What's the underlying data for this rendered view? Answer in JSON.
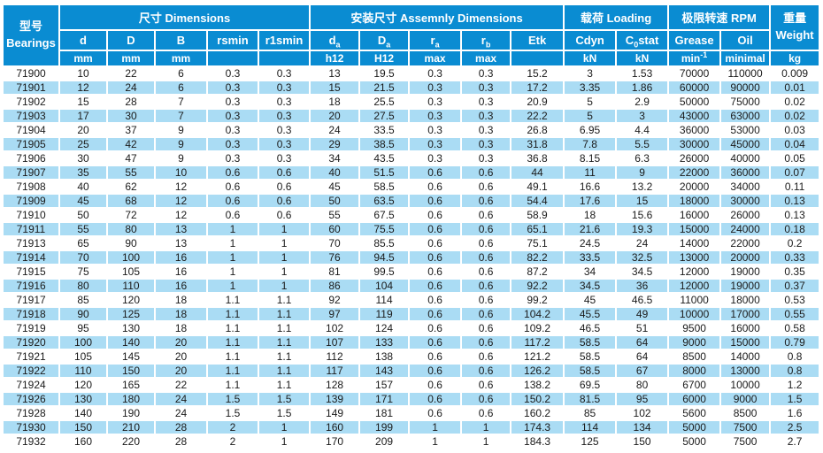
{
  "colors": {
    "header_blue": "#0a8cd2",
    "row_alt_blue": "#aadcf4",
    "row_white": "#ffffff",
    "header_text": "#ffffff",
    "data_text": "#1b1b1b"
  },
  "table": {
    "header": {
      "bearings": {
        "zh": "型号",
        "en": "Bearings"
      },
      "groups": {
        "dimensions": "尺寸 Dimensions",
        "assembly": "安装尺寸 Assemnly Dimensions",
        "loading": "载荷 Loading",
        "rpm": "极限转速 RPM"
      },
      "weight": {
        "zh": "重量",
        "en": "Weight",
        "unit": "kg"
      },
      "columns": [
        {
          "pre": "d",
          "sub": "",
          "post": "",
          "unit": "mm",
          "unit_sup": ""
        },
        {
          "pre": "D",
          "sub": "",
          "post": "",
          "unit": "mm",
          "unit_sup": ""
        },
        {
          "pre": "B",
          "sub": "",
          "post": "",
          "unit": "mm",
          "unit_sup": ""
        },
        {
          "pre": "rsmin",
          "sub": "",
          "post": "",
          "unit": "",
          "unit_sup": ""
        },
        {
          "pre": "r1smin",
          "sub": "",
          "post": "",
          "unit": "",
          "unit_sup": ""
        },
        {
          "pre": "d",
          "sub": "a",
          "post": "",
          "unit": "h12",
          "unit_sup": ""
        },
        {
          "pre": "D",
          "sub": "a",
          "post": "",
          "unit": "H12",
          "unit_sup": ""
        },
        {
          "pre": "r",
          "sub": "a",
          "post": "",
          "unit": "max",
          "unit_sup": ""
        },
        {
          "pre": "r",
          "sub": "b",
          "post": "",
          "unit": "max",
          "unit_sup": ""
        },
        {
          "pre": "Etk",
          "sub": "",
          "post": "",
          "unit": "",
          "unit_sup": ""
        },
        {
          "pre": "Cdyn",
          "sub": "",
          "post": "",
          "unit": "kN",
          "unit_sup": ""
        },
        {
          "pre": "C",
          "sub": "0",
          "post": "stat",
          "unit": "kN",
          "unit_sup": ""
        },
        {
          "pre": "Grease",
          "sub": "",
          "post": "",
          "unit": "min",
          "unit_sup": "-1"
        },
        {
          "pre": "Oil",
          "sub": "",
          "post": "",
          "unit": "minimal",
          "unit_sup": ""
        }
      ]
    },
    "rows": [
      [
        71900,
        10,
        22,
        6,
        0.3,
        0.3,
        13,
        19.5,
        0.3,
        0.3,
        15.2,
        3,
        1.53,
        70000,
        110000,
        0.009
      ],
      [
        71901,
        12,
        24,
        6,
        0.3,
        0.3,
        15,
        21.5,
        0.3,
        0.3,
        17.2,
        3.35,
        1.86,
        60000,
        90000,
        0.01
      ],
      [
        71902,
        15,
        28,
        7,
        0.3,
        0.3,
        18,
        25.5,
        0.3,
        0.3,
        20.9,
        5,
        2.9,
        50000,
        75000,
        0.02
      ],
      [
        71903,
        17,
        30,
        7,
        0.3,
        0.3,
        20,
        27.5,
        0.3,
        0.3,
        22.2,
        5,
        3,
        43000,
        63000,
        0.02
      ],
      [
        71904,
        20,
        37,
        9,
        0.3,
        0.3,
        24,
        33.5,
        0.3,
        0.3,
        26.8,
        6.95,
        4.4,
        36000,
        53000,
        0.03
      ],
      [
        71905,
        25,
        42,
        9,
        0.3,
        0.3,
        29,
        38.5,
        0.3,
        0.3,
        31.8,
        7.8,
        5.5,
        30000,
        45000,
        0.04
      ],
      [
        71906,
        30,
        47,
        9,
        0.3,
        0.3,
        34,
        43.5,
        0.3,
        0.3,
        36.8,
        8.15,
        6.3,
        26000,
        40000,
        0.05
      ],
      [
        71907,
        35,
        55,
        10,
        0.6,
        0.6,
        40,
        51.5,
        0.6,
        0.6,
        44,
        11,
        9,
        22000,
        36000,
        0.07
      ],
      [
        71908,
        40,
        62,
        12,
        0.6,
        0.6,
        45,
        58.5,
        0.6,
        0.6,
        49.1,
        16.6,
        13.2,
        20000,
        34000,
        0.11
      ],
      [
        71909,
        45,
        68,
        12,
        0.6,
        0.6,
        50,
        63.5,
        0.6,
        0.6,
        54.4,
        17.6,
        15,
        18000,
        30000,
        0.13
      ],
      [
        71910,
        50,
        72,
        12,
        0.6,
        0.6,
        55,
        67.5,
        0.6,
        0.6,
        58.9,
        18,
        15.6,
        16000,
        26000,
        0.13
      ],
      [
        71911,
        55,
        80,
        13,
        1,
        1,
        60,
        75.5,
        0.6,
        0.6,
        65.1,
        21.6,
        19.3,
        15000,
        24000,
        0.18
      ],
      [
        71913,
        65,
        90,
        13,
        1,
        1,
        70,
        85.5,
        0.6,
        0.6,
        75.1,
        24.5,
        24,
        14000,
        22000,
        0.2
      ],
      [
        71914,
        70,
        100,
        16,
        1,
        1,
        76,
        94.5,
        0.6,
        0.6,
        82.2,
        33.5,
        32.5,
        13000,
        20000,
        0.33
      ],
      [
        71915,
        75,
        105,
        16,
        1,
        1,
        81,
        99.5,
        0.6,
        0.6,
        87.2,
        34,
        34.5,
        12000,
        19000,
        0.35
      ],
      [
        71916,
        80,
        110,
        16,
        1,
        1,
        86,
        104,
        0.6,
        0.6,
        92.2,
        34.5,
        36,
        12000,
        19000,
        0.37
      ],
      [
        71917,
        85,
        120,
        18,
        1.1,
        1.1,
        92,
        114,
        0.6,
        0.6,
        99.2,
        45,
        46.5,
        11000,
        18000,
        0.53
      ],
      [
        71918,
        90,
        125,
        18,
        1.1,
        1.1,
        97,
        119,
        0.6,
        0.6,
        104.2,
        45.5,
        49,
        10000,
        17000,
        0.55
      ],
      [
        71919,
        95,
        130,
        18,
        1.1,
        1.1,
        102,
        124,
        0.6,
        0.6,
        109.2,
        46.5,
        51,
        9500,
        16000,
        0.58
      ],
      [
        71920,
        100,
        140,
        20,
        1.1,
        1.1,
        107,
        133,
        0.6,
        0.6,
        117.2,
        58.5,
        64,
        9000,
        15000,
        0.79
      ],
      [
        71921,
        105,
        145,
        20,
        1.1,
        1.1,
        112,
        138,
        0.6,
        0.6,
        121.2,
        58.5,
        64,
        8500,
        14000,
        0.8
      ],
      [
        71922,
        110,
        150,
        20,
        1.1,
        1.1,
        117,
        143,
        0.6,
        0.6,
        126.2,
        58.5,
        67,
        8000,
        13000,
        0.8
      ],
      [
        71924,
        120,
        165,
        22,
        1.1,
        1.1,
        128,
        157,
        0.6,
        0.6,
        138.2,
        69.5,
        80,
        6700,
        10000,
        1.2
      ],
      [
        71926,
        130,
        180,
        24,
        1.5,
        1.5,
        139,
        171,
        0.6,
        0.6,
        150.2,
        81.5,
        95,
        6000,
        9000,
        1.5
      ],
      [
        71928,
        140,
        190,
        24,
        1.5,
        1.5,
        149,
        181,
        0.6,
        0.6,
        160.2,
        85,
        102,
        5600,
        8500,
        1.6
      ],
      [
        71930,
        150,
        210,
        28,
        2,
        1,
        160,
        199,
        1,
        1,
        174.3,
        114,
        134,
        5000,
        7500,
        2.5
      ],
      [
        71932,
        160,
        220,
        28,
        2,
        1,
        170,
        209,
        1,
        1,
        184.3,
        125,
        150,
        5000,
        7500,
        2.7
      ]
    ]
  }
}
